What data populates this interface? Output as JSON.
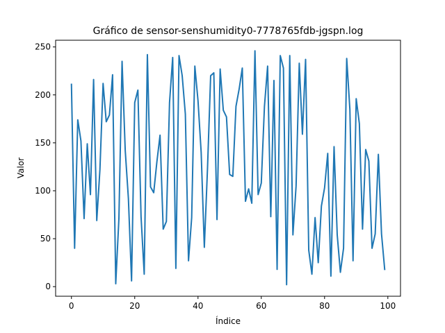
{
  "chart_data": {
    "type": "line",
    "title": "Gráfico de sensor-senshumidity0-7778765fdb-jgspn.log",
    "xlabel": "Índice",
    "ylabel": "Valor",
    "xlim": [
      -5,
      104
    ],
    "ylim": [
      -10,
      257
    ],
    "xticks": [
      0,
      20,
      40,
      60,
      80,
      100
    ],
    "yticks": [
      0,
      50,
      100,
      150,
      200,
      250
    ],
    "grid": false,
    "line_color": "#1f77b4",
    "series": [
      {
        "x": [
          0,
          1,
          2,
          3,
          4,
          5,
          6,
          7,
          8,
          9,
          10,
          11,
          12,
          13,
          14,
          15,
          16,
          17,
          18,
          19,
          20,
          21,
          22,
          23,
          24,
          25,
          26,
          27,
          28,
          29,
          30,
          31,
          32,
          33,
          34,
          35,
          36,
          37,
          38,
          39,
          40,
          41,
          42,
          43,
          44,
          45,
          46,
          47,
          48,
          49,
          50,
          51,
          52,
          53,
          54,
          55,
          56,
          57,
          58,
          59,
          60,
          61,
          62,
          63,
          64,
          65,
          66,
          67,
          68,
          69,
          70,
          71,
          72,
          73,
          74,
          75,
          76,
          77,
          78,
          79,
          80,
          81,
          82,
          83,
          84,
          85,
          86,
          87,
          88,
          89,
          90,
          91,
          92,
          93,
          94,
          95,
          96,
          97,
          98,
          99
        ],
        "values": [
          211,
          40,
          174,
          152,
          71,
          149,
          96,
          216,
          69,
          122,
          212,
          172,
          179,
          221,
          3,
          71,
          235,
          142,
          92,
          6,
          192,
          205,
          73,
          13,
          242,
          104,
          98,
          130,
          158,
          60,
          68,
          192,
          239,
          19,
          241,
          220,
          180,
          27,
          72,
          230,
          194,
          140,
          41,
          123,
          220,
          223,
          70,
          227,
          184,
          177,
          117,
          115,
          188,
          206,
          228,
          89,
          102,
          87,
          246,
          96,
          108,
          188,
          230,
          73,
          215,
          18,
          241,
          228,
          2,
          241,
          54,
          105,
          233,
          159,
          237,
          38,
          13,
          72,
          25,
          84,
          103,
          139,
          11,
          146,
          54,
          15,
          40,
          238,
          185,
          27,
          196,
          170,
          60,
          143,
          131,
          40,
          55,
          138,
          55,
          18
        ]
      }
    ]
  }
}
